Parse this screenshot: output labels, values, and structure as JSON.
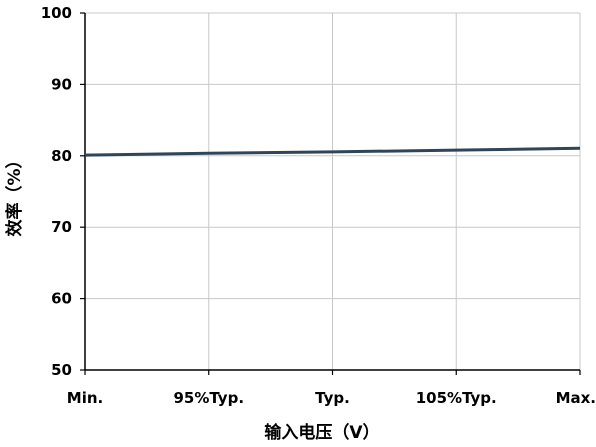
{
  "chart_data": {
    "type": "line",
    "categories": [
      "Min.",
      "95%Typ.",
      "Typ.",
      "105%Typ.",
      "Max."
    ],
    "series": [
      {
        "values": [
          80.1,
          80.35,
          80.55,
          80.8,
          81.05
        ]
      }
    ],
    "xlabel": "输入电压（V）",
    "ylabel": "效率（%）",
    "ylim": [
      50,
      100
    ],
    "yticks": [
      50,
      60,
      70,
      80,
      90,
      100
    ],
    "grid": true,
    "line_color": "#2f4559",
    "grid_color": "#c8c8c8"
  }
}
